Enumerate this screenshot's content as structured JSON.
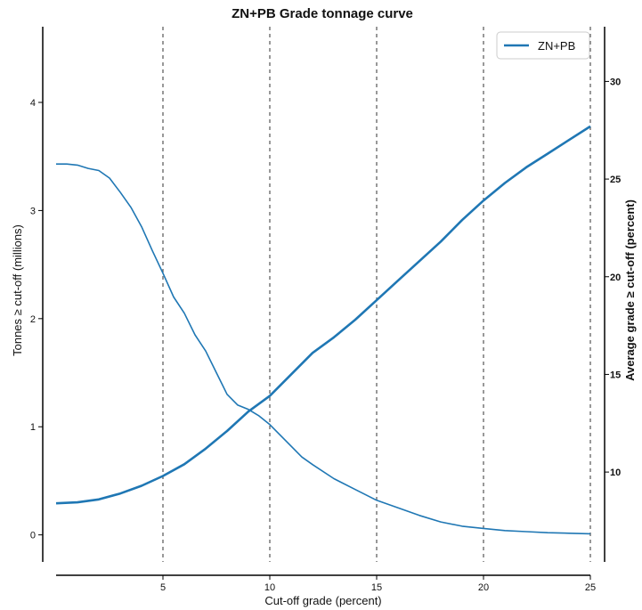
{
  "chart_data": {
    "type": "line",
    "title": "ZN+PB Grade tonnage curve",
    "xlabel": "Cut-off grade (percent)",
    "ylabel_left": "Tonnes ≥ cut-off (millions)",
    "ylabel_right": "Average grade ≥ cut-off (percent)",
    "xlim": [
      0,
      25
    ],
    "ylim_left": [
      -0.25,
      4.7
    ],
    "ylim_right": [
      5.4,
      32.8
    ],
    "x_ticks": [
      5,
      10,
      15,
      20,
      25
    ],
    "y_left_ticks": [
      0,
      1,
      2,
      3,
      4
    ],
    "y_right_ticks": [
      10,
      15,
      20,
      25,
      30
    ],
    "vlines": [
      5,
      10,
      15,
      20,
      25
    ],
    "legend": {
      "position": "top-right",
      "label": "ZN+PB"
    },
    "color": "#1f77b4",
    "series": [
      {
        "name": "ZN+PB",
        "axis": "left",
        "quantity": "tonnes",
        "x": [
          0,
          0.5,
          1,
          1.5,
          2,
          2.5,
          3,
          3.5,
          4,
          4.5,
          5,
          5.5,
          6,
          6.5,
          7,
          7.5,
          8,
          8.5,
          9,
          9.5,
          10,
          10.5,
          11,
          11.5,
          12,
          13,
          14,
          15,
          16,
          17,
          18,
          19,
          20,
          21,
          22,
          23,
          24,
          25
        ],
        "y": [
          3.43,
          3.43,
          3.42,
          3.39,
          3.37,
          3.3,
          3.17,
          3.03,
          2.85,
          2.63,
          2.42,
          2.2,
          2.05,
          1.85,
          1.7,
          1.5,
          1.3,
          1.2,
          1.16,
          1.1,
          1.02,
          0.92,
          0.82,
          0.72,
          0.65,
          0.52,
          0.42,
          0.32,
          0.25,
          0.18,
          0.12,
          0.08,
          0.06,
          0.04,
          0.03,
          0.02,
          0.015,
          0.01
        ]
      },
      {
        "name": "",
        "axis": "right",
        "quantity": "average grade",
        "x": [
          0,
          1,
          2,
          3,
          4,
          5,
          6,
          7,
          8,
          9,
          10,
          11,
          12,
          13,
          14,
          15,
          16,
          17,
          18,
          19,
          20,
          21,
          22,
          23,
          24,
          25
        ],
        "y": [
          8.4,
          8.45,
          8.6,
          8.9,
          9.3,
          9.8,
          10.4,
          11.2,
          12.1,
          13.1,
          13.9,
          15.0,
          16.1,
          16.9,
          17.8,
          18.8,
          19.8,
          20.8,
          21.8,
          22.9,
          23.9,
          24.8,
          25.6,
          26.3,
          27.0,
          27.7
        ]
      }
    ]
  }
}
